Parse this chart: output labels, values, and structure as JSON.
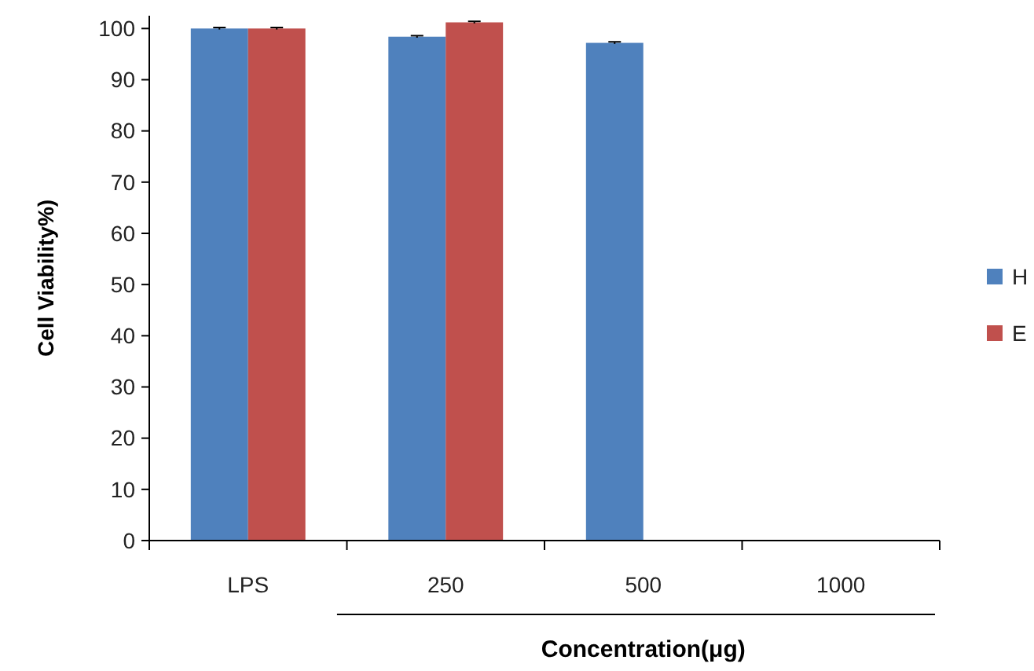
{
  "chart_data": {
    "type": "bar",
    "xlabel": "Concentration(μg)",
    "ylabel": "Cell Viability%)",
    "categories": [
      "LPS",
      "250",
      "500",
      "1000"
    ],
    "series": [
      {
        "name": "H",
        "color": "#4f81bd",
        "values": [
          100,
          98.4,
          97.2,
          null
        ],
        "errors": [
          0.2,
          0.2,
          0.2,
          null
        ]
      },
      {
        "name": "E",
        "color": "#c0504d",
        "values": [
          100,
          101.2,
          null,
          null
        ],
        "errors": [
          0.2,
          0.2,
          null,
          null
        ]
      }
    ],
    "ylim": [
      0,
      102.5
    ],
    "yticks": [
      0,
      10,
      20,
      30,
      40,
      50,
      60,
      70,
      80,
      90,
      100
    ],
    "legend": "right"
  }
}
